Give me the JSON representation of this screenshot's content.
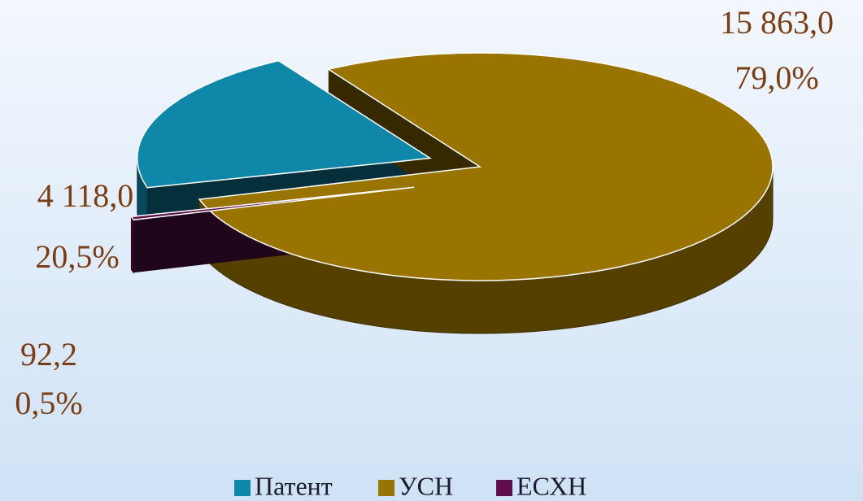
{
  "chart_data": {
    "type": "pie",
    "categories": [
      "Патент",
      "УСН",
      "ЕСХН"
    ],
    "values": [
      4118.0,
      15863.0,
      92.2
    ],
    "value_labels": [
      "4 118,0",
      "15 863,0",
      "92,2"
    ],
    "percents": [
      20.5,
      79.0,
      0.5
    ],
    "percent_labels": [
      "20,5%",
      "79,0%",
      "0,5%"
    ],
    "colors": [
      "#0e87a8",
      "#9a7400",
      "#5e0f4e"
    ],
    "legend": "bottom"
  }
}
